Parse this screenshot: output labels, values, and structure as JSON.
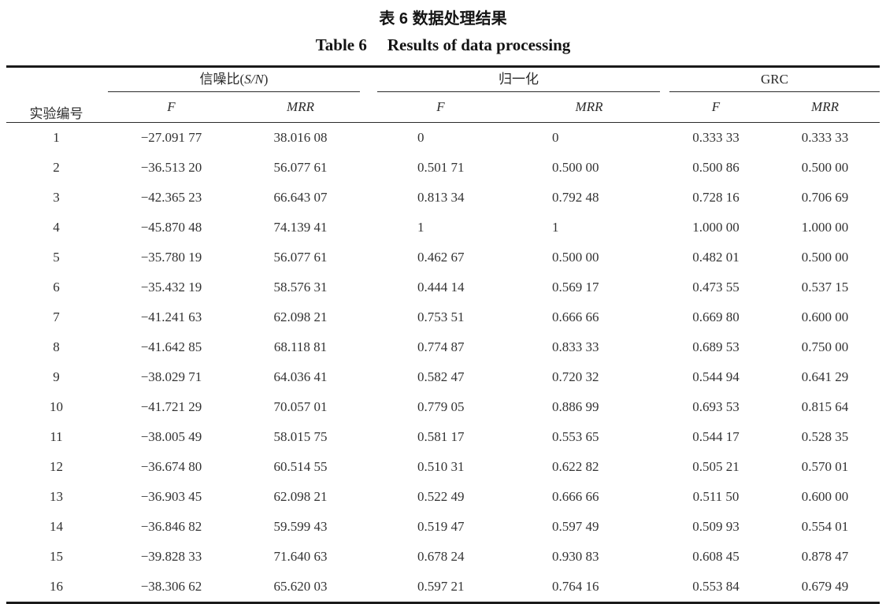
{
  "page": {
    "background": "#ffffff",
    "text_color": "#2b2b2b",
    "rule_color": "#1a1a1a"
  },
  "titles": {
    "chinese": "表 6 数据处理结果",
    "english_label": "Table 6",
    "english_text": "Results of data processing"
  },
  "table": {
    "row_header": "实验编号",
    "groups": [
      {
        "prefix": "信噪比(",
        "italic": "S/N",
        "suffix": ")"
      },
      {
        "prefix": "归一化",
        "italic": "",
        "suffix": ""
      },
      {
        "prefix": "GRC",
        "italic": "",
        "suffix": ""
      }
    ],
    "subheaders": {
      "f": "F",
      "mrr": "MRR"
    },
    "columns_order": [
      "id",
      "sn_f",
      "sn_mrr",
      "norm_f",
      "norm_mrr",
      "grc_f",
      "grc_mrr"
    ],
    "rows": [
      {
        "id": "1",
        "sn_f": "−27.091 77",
        "sn_mrr": "38.016 08",
        "norm_f": "0",
        "norm_mrr": "0",
        "grc_f": "0.333 33",
        "grc_mrr": "0.333 33"
      },
      {
        "id": "2",
        "sn_f": "−36.513 20",
        "sn_mrr": "56.077 61",
        "norm_f": "0.501 71",
        "norm_mrr": "0.500 00",
        "grc_f": "0.500 86",
        "grc_mrr": "0.500 00"
      },
      {
        "id": "3",
        "sn_f": "−42.365 23",
        "sn_mrr": "66.643 07",
        "norm_f": "0.813 34",
        "norm_mrr": "0.792 48",
        "grc_f": "0.728 16",
        "grc_mrr": "0.706 69"
      },
      {
        "id": "4",
        "sn_f": "−45.870 48",
        "sn_mrr": "74.139 41",
        "norm_f": "1",
        "norm_mrr": "1",
        "grc_f": "1.000 00",
        "grc_mrr": "1.000 00"
      },
      {
        "id": "5",
        "sn_f": "−35.780 19",
        "sn_mrr": "56.077 61",
        "norm_f": "0.462 67",
        "norm_mrr": "0.500 00",
        "grc_f": "0.482 01",
        "grc_mrr": "0.500 00"
      },
      {
        "id": "6",
        "sn_f": "−35.432 19",
        "sn_mrr": "58.576 31",
        "norm_f": "0.444 14",
        "norm_mrr": "0.569 17",
        "grc_f": "0.473 55",
        "grc_mrr": "0.537 15"
      },
      {
        "id": "7",
        "sn_f": "−41.241 63",
        "sn_mrr": "62.098 21",
        "norm_f": "0.753 51",
        "norm_mrr": "0.666 66",
        "grc_f": "0.669 80",
        "grc_mrr": "0.600 00"
      },
      {
        "id": "8",
        "sn_f": "−41.642 85",
        "sn_mrr": "68.118 81",
        "norm_f": "0.774 87",
        "norm_mrr": "0.833 33",
        "grc_f": "0.689 53",
        "grc_mrr": "0.750 00"
      },
      {
        "id": "9",
        "sn_f": "−38.029 71",
        "sn_mrr": "64.036 41",
        "norm_f": "0.582 47",
        "norm_mrr": "0.720 32",
        "grc_f": "0.544 94",
        "grc_mrr": "0.641 29"
      },
      {
        "id": "10",
        "sn_f": "−41.721 29",
        "sn_mrr": "70.057 01",
        "norm_f": "0.779 05",
        "norm_mrr": "0.886 99",
        "grc_f": "0.693 53",
        "grc_mrr": "0.815 64"
      },
      {
        "id": "11",
        "sn_f": "−38.005 49",
        "sn_mrr": "58.015 75",
        "norm_f": "0.581 17",
        "norm_mrr": "0.553 65",
        "grc_f": "0.544 17",
        "grc_mrr": "0.528 35"
      },
      {
        "id": "12",
        "sn_f": "−36.674 80",
        "sn_mrr": "60.514 55",
        "norm_f": "0.510 31",
        "norm_mrr": "0.622 82",
        "grc_f": "0.505 21",
        "grc_mrr": "0.570 01"
      },
      {
        "id": "13",
        "sn_f": "−36.903 45",
        "sn_mrr": "62.098 21",
        "norm_f": "0.522 49",
        "norm_mrr": "0.666 66",
        "grc_f": "0.511 50",
        "grc_mrr": "0.600 00"
      },
      {
        "id": "14",
        "sn_f": "−36.846 82",
        "sn_mrr": "59.599 43",
        "norm_f": "0.519 47",
        "norm_mrr": "0.597 49",
        "grc_f": "0.509 93",
        "grc_mrr": "0.554 01"
      },
      {
        "id": "15",
        "sn_f": "−39.828 33",
        "sn_mrr": "71.640 63",
        "norm_f": "0.678 24",
        "norm_mrr": "0.930 83",
        "grc_f": "0.608 45",
        "grc_mrr": "0.878 47"
      },
      {
        "id": "16",
        "sn_f": "−38.306 62",
        "sn_mrr": "65.620 03",
        "norm_f": "0.597 21",
        "norm_mrr": "0.764 16",
        "grc_f": "0.553 84",
        "grc_mrr": "0.679 49"
      }
    ]
  }
}
